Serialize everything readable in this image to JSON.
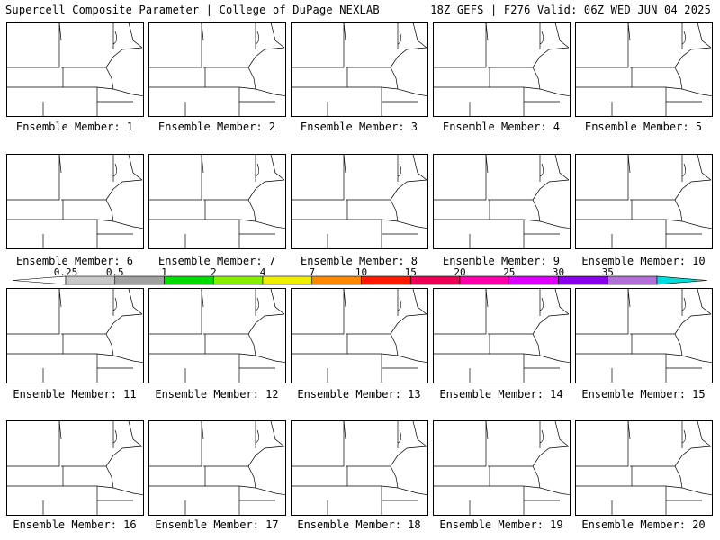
{
  "header": {
    "left": "Supercell Composite Parameter | College of DuPage NEXLAB",
    "right": "18Z GEFS | F276 Valid: 06Z WED JUN 04 2025"
  },
  "colorbar": {
    "ticks": [
      "0.25",
      "0.5",
      "1",
      "2",
      "4",
      "7",
      "10",
      "15",
      "20",
      "25",
      "30",
      "35"
    ],
    "colors": [
      "#c8c8c8",
      "#a0a0a0",
      "#00dd00",
      "#88ee00",
      "#eeee00",
      "#ff8800",
      "#ff1a00",
      "#ee0055",
      "#ff00aa",
      "#dd00ff",
      "#8800ee",
      "#b070d8",
      "#00dddd"
    ]
  },
  "members": [
    {
      "label": "Ensemble Member: 1"
    },
    {
      "label": "Ensemble Member: 2"
    },
    {
      "label": "Ensemble Member: 3"
    },
    {
      "label": "Ensemble Member: 4"
    },
    {
      "label": "Ensemble Member: 5"
    },
    {
      "label": "Ensemble Member: 6"
    },
    {
      "label": "Ensemble Member: 7"
    },
    {
      "label": "Ensemble Member: 8"
    },
    {
      "label": "Ensemble Member: 9"
    },
    {
      "label": "Ensemble Member: 10"
    },
    {
      "label": "Ensemble Member: 11"
    },
    {
      "label": "Ensemble Member: 12"
    },
    {
      "label": "Ensemble Member: 13"
    },
    {
      "label": "Ensemble Member: 14"
    },
    {
      "label": "Ensemble Member: 15"
    },
    {
      "label": "Ensemble Member: 16"
    },
    {
      "label": "Ensemble Member: 17"
    },
    {
      "label": "Ensemble Member: 18"
    },
    {
      "label": "Ensemble Member: 19"
    },
    {
      "label": "Ensemble Member: 20"
    }
  ]
}
